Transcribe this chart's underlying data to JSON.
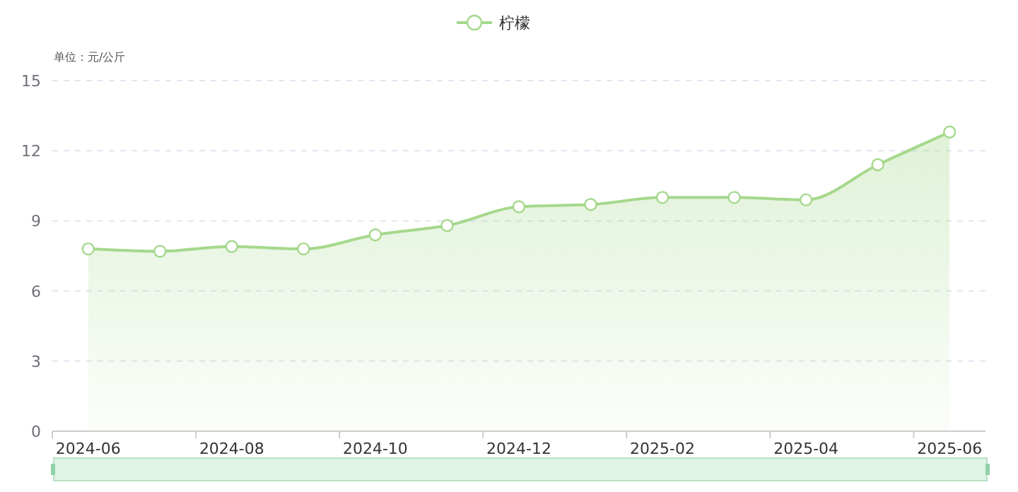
{
  "chart_data": {
    "type": "area",
    "ylabel": "单位：元/公斤",
    "categories": [
      "2024-06",
      null,
      "2024-08",
      null,
      "2024-10",
      null,
      "2024-12",
      null,
      "2025-02",
      null,
      "2025-04",
      null,
      "2025-06"
    ],
    "series": [
      {
        "name": "柠檬",
        "color": "#a5d88c",
        "values": [
          7.8,
          7.7,
          7.9,
          7.8,
          8.4,
          8.8,
          9.6,
          9.7,
          10.0,
          10.0,
          9.9,
          11.4,
          12.8
        ]
      }
    ],
    "ylim": [
      0,
      15
    ],
    "yticks": [
      0,
      3,
      6,
      9,
      12,
      15
    ],
    "grid": "y",
    "legend": "top",
    "marker": "circle"
  }
}
